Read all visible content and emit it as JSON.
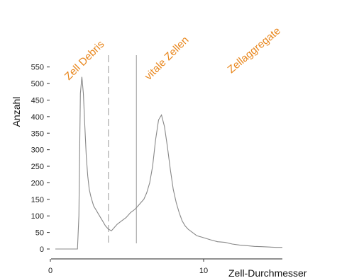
{
  "chart_data": {
    "type": "line",
    "title": "",
    "xlabel": "Zell-Durchmesser",
    "ylabel": "Anzahl",
    "xlim": [
      0,
      15.4
    ],
    "ylim": [
      0,
      560
    ],
    "xticks": [
      0,
      10
    ],
    "yticks": [
      0,
      50,
      100,
      150,
      200,
      250,
      300,
      350,
      400,
      450,
      500,
      550
    ],
    "grid": false,
    "legend": "none",
    "series": [
      {
        "color": "#888888",
        "x": [
          1.5,
          1.6,
          1.65,
          1.7,
          1.8,
          1.9,
          2.0,
          2.1,
          2.2,
          2.3,
          2.4,
          2.5,
          2.6,
          2.8,
          3.0,
          3.2,
          3.4,
          3.6,
          3.8,
          4.0,
          4.2,
          4.5,
          4.8,
          5.1,
          5.4,
          5.6,
          5.8,
          6.0,
          6.2,
          6.4,
          6.6,
          6.8,
          7.0,
          7.2,
          7.4,
          7.6,
          7.8,
          8.0,
          8.2,
          8.4,
          8.6,
          8.8,
          9.0,
          9.3,
          9.6,
          10.0,
          10.5,
          11.0,
          11.5,
          12.0,
          12.5,
          13.0,
          13.5,
          14.0,
          14.5,
          15.0,
          15.4
        ],
        "y": [
          0,
          100,
          300,
          470,
          520,
          470,
          370,
          280,
          220,
          180,
          160,
          145,
          130,
          115,
          100,
          85,
          70,
          60,
          55,
          65,
          75,
          85,
          95,
          110,
          120,
          130,
          140,
          150,
          170,
          200,
          250,
          330,
          390,
          405,
          370,
          310,
          240,
          180,
          140,
          110,
          85,
          70,
          60,
          50,
          40,
          35,
          28,
          22,
          20,
          15,
          12,
          10,
          8,
          7,
          6,
          5,
          5
        ]
      }
    ],
    "vlines": [
      {
        "x": 3.6,
        "style": "dashed",
        "color": "#aaaaaa"
      },
      {
        "x": 5.5,
        "style": "solid",
        "color": "#aaaaaa"
      }
    ],
    "region_labels": [
      {
        "text": "Zell Debris",
        "color": "#e8861c"
      },
      {
        "text": "vitale Zellen",
        "color": "#e8861c"
      },
      {
        "text": "Zellaggregate",
        "color": "#e8861c"
      }
    ]
  }
}
